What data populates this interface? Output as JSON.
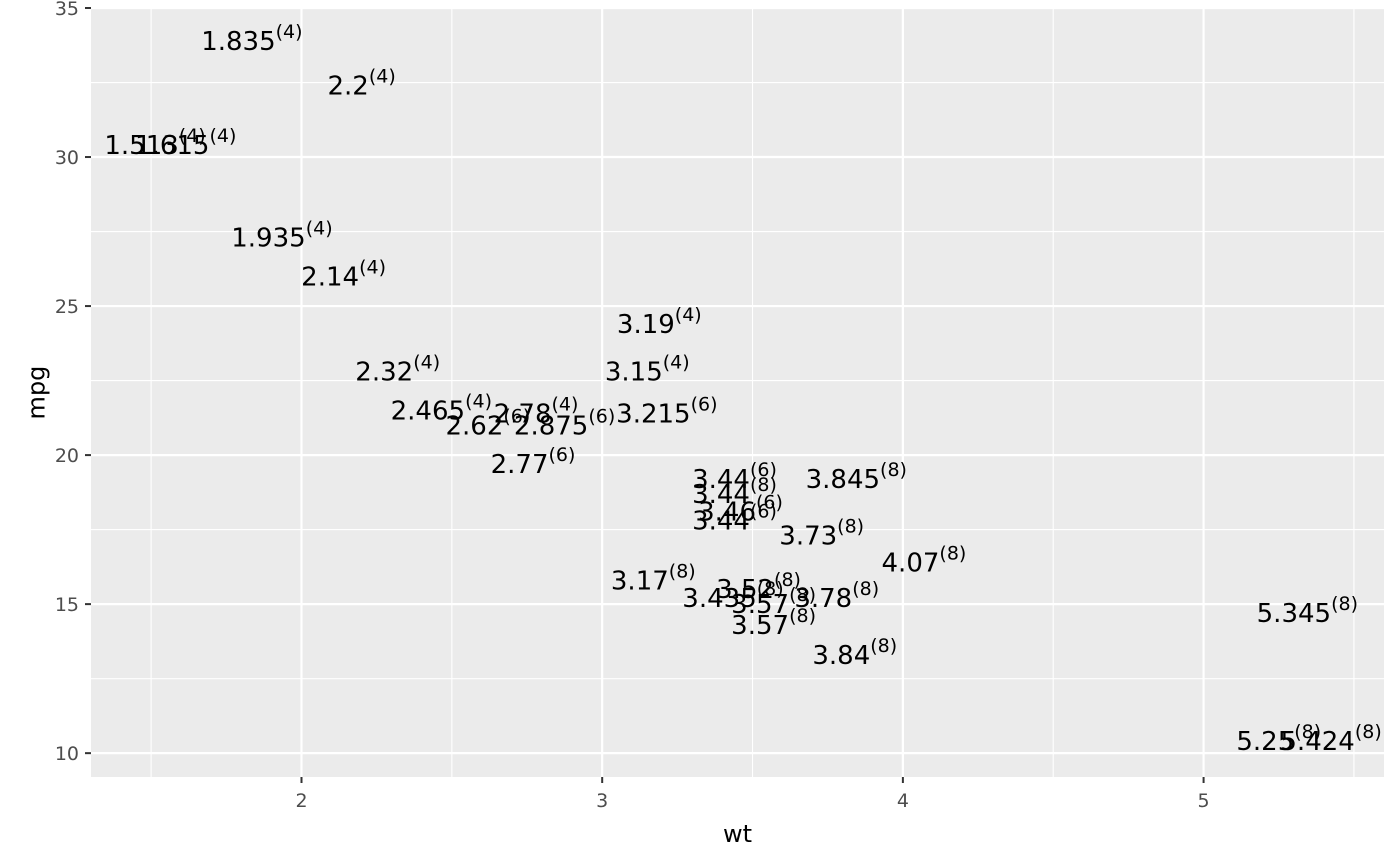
{
  "chart_data": {
    "type": "scatter",
    "title": "",
    "xlabel": "wt",
    "ylabel": "mpg",
    "xlim": [
      1.3,
      5.6
    ],
    "ylim": [
      9.2,
      35.0
    ],
    "x_ticks": [
      2,
      3,
      4,
      5
    ],
    "y_ticks": [
      10,
      15,
      20,
      25,
      30,
      35
    ],
    "x_tick_labels": [
      "2",
      "3",
      "4",
      "5"
    ],
    "y_tick_labels": [
      "10",
      "15",
      "20",
      "25",
      "30",
      "35"
    ],
    "grid": true,
    "legend": "none",
    "colors": {
      "panel_background": "#ebebeb",
      "grid_line": "#ffffff",
      "text": "#000000",
      "tick_text": "#4d4d4d"
    },
    "points": [
      {
        "x": 2.62,
        "y": 21.0,
        "label": "2.62",
        "sup": "(6)"
      },
      {
        "x": 2.875,
        "y": 21.0,
        "label": "2.875",
        "sup": "(6)"
      },
      {
        "x": 2.32,
        "y": 22.8,
        "label": "2.32",
        "sup": "(4)"
      },
      {
        "x": 3.215,
        "y": 21.4,
        "label": "3.215",
        "sup": "(6)"
      },
      {
        "x": 3.44,
        "y": 18.7,
        "label": "3.44",
        "sup": "(8)"
      },
      {
        "x": 3.46,
        "y": 18.1,
        "label": "3.46",
        "sup": "(6)"
      },
      {
        "x": 3.57,
        "y": 14.3,
        "label": "3.57",
        "sup": "(8)"
      },
      {
        "x": 3.19,
        "y": 24.4,
        "label": "3.19",
        "sup": "(4)"
      },
      {
        "x": 3.15,
        "y": 22.8,
        "label": "3.15",
        "sup": "(4)"
      },
      {
        "x": 3.44,
        "y": 19.2,
        "label": "3.44",
        "sup": "(6)"
      },
      {
        "x": 3.44,
        "y": 17.8,
        "label": "3.44",
        "sup": "(6)"
      },
      {
        "x": 4.07,
        "y": 16.4,
        "label": "4.07",
        "sup": "(8)"
      },
      {
        "x": 3.73,
        "y": 17.3,
        "label": "3.73",
        "sup": "(8)"
      },
      {
        "x": 3.78,
        "y": 15.2,
        "label": "3.78",
        "sup": "(8)"
      },
      {
        "x": 5.25,
        "y": 10.4,
        "label": "5.25",
        "sup": "(8)"
      },
      {
        "x": 5.424,
        "y": 10.4,
        "label": "5.424",
        "sup": "(8)"
      },
      {
        "x": 5.345,
        "y": 14.7,
        "label": "5.345",
        "sup": "(8)"
      },
      {
        "x": 2.2,
        "y": 32.4,
        "label": "2.2",
        "sup": "(4)"
      },
      {
        "x": 1.615,
        "y": 30.4,
        "label": "1.615",
        "sup": "(4)"
      },
      {
        "x": 1.835,
        "y": 33.9,
        "label": "1.835",
        "sup": "(4)"
      },
      {
        "x": 2.465,
        "y": 21.5,
        "label": "2.465",
        "sup": "(4)"
      },
      {
        "x": 3.52,
        "y": 15.5,
        "label": "3.52",
        "sup": "(8)"
      },
      {
        "x": 3.435,
        "y": 15.2,
        "label": "3.435",
        "sup": "(8)"
      },
      {
        "x": 3.84,
        "y": 13.3,
        "label": "3.84",
        "sup": "(8)"
      },
      {
        "x": 3.845,
        "y": 19.2,
        "label": "3.845",
        "sup": "(8)"
      },
      {
        "x": 1.935,
        "y": 27.3,
        "label": "1.935",
        "sup": "(4)"
      },
      {
        "x": 2.14,
        "y": 26.0,
        "label": "2.14",
        "sup": "(4)"
      },
      {
        "x": 1.513,
        "y": 30.4,
        "label": "1.513",
        "sup": "(4)"
      },
      {
        "x": 3.17,
        "y": 15.8,
        "label": "3.17",
        "sup": "(8)"
      },
      {
        "x": 2.77,
        "y": 19.7,
        "label": "2.77",
        "sup": "(6)"
      },
      {
        "x": 3.57,
        "y": 15.0,
        "label": "3.57",
        "sup": "(8)"
      },
      {
        "x": 2.78,
        "y": 21.4,
        "label": "2.78",
        "sup": "(4)"
      }
    ]
  }
}
